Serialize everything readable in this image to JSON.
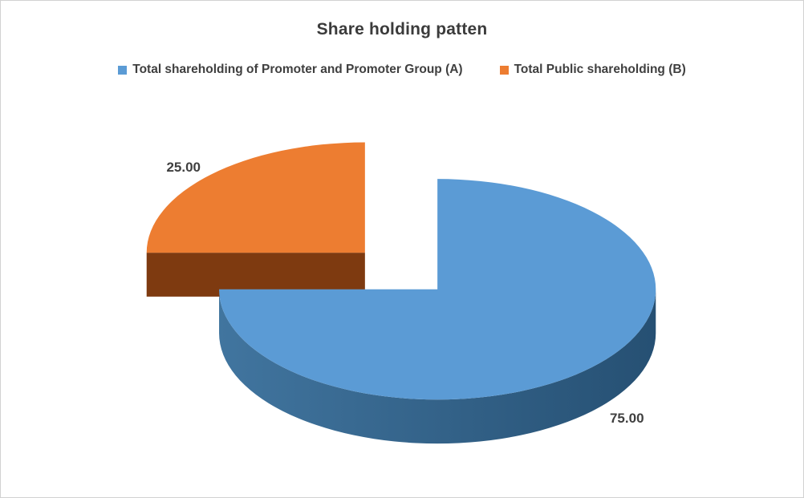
{
  "chart_data": {
    "type": "pie",
    "title": "Share holding patten",
    "effect": "3d-exploded",
    "legend_position": "top",
    "slices": [
      {
        "name": "Total shareholding of Promoter and Promoter Group (A)",
        "value": 75,
        "label": "75.00",
        "color": "#5b9bd5",
        "side_color": "#41759f",
        "side_color_dark": "#265073"
      },
      {
        "name": "Total Public shareholding (B)",
        "value": 25,
        "label": "25.00",
        "color": "#ed7d31",
        "side_color": "#7e3a10",
        "side_color_dark": "#6e320d"
      }
    ],
    "colors": {
      "background": "#ffffff",
      "border": "#d2d2d2",
      "text": "#3f3f3f"
    }
  }
}
